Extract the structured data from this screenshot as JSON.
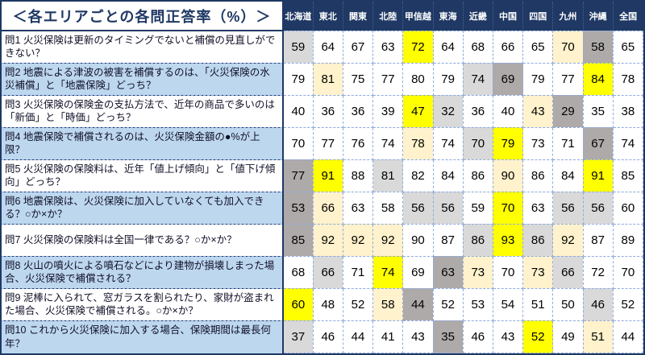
{
  "title": "＜各エリアごとの各問正答率（%）＞",
  "colors": {
    "navy": "#1F3864",
    "header_text": "#FFFFFF",
    "question_alt_bg": "#BDD7EE",
    "highlight_high": "#FFFF00",
    "highlight_high2": "#FFF2CC",
    "highlight_low": "#AEAAAA",
    "highlight_low2": "#D9D9D9"
  },
  "chart_data": {
    "type": "table",
    "title": "各エリアごとの各問正答率（%）",
    "columns": [
      "北海道",
      "東北",
      "関東",
      "北陸",
      "甲信越",
      "東海",
      "近畿",
      "中国",
      "四国",
      "九州",
      "沖縄",
      "全国"
    ],
    "highlight_colors": {
      "high": "#FFFF00",
      "high2": "#FFF2CC",
      "low": "#AEAAAA",
      "low2": "#D9D9D9"
    },
    "rows": [
      {
        "question": "問1 火災保険は更新のタイミングでないと補償の見直しができない？",
        "values": [
          59,
          64,
          67,
          63,
          72,
          64,
          68,
          66,
          65,
          70,
          58,
          65
        ],
        "highlights": [
          "low2",
          "",
          "",
          "",
          "high",
          "",
          "",
          "",
          "",
          "high2",
          "low",
          ""
        ]
      },
      {
        "question": "問2 地震による津波の被害を補償するのは、「火災保険の水災補償」と「地震保険」どっち？",
        "values": [
          79,
          81,
          75,
          77,
          80,
          79,
          74,
          69,
          79,
          77,
          84,
          78
        ],
        "highlights": [
          "",
          "high2",
          "",
          "",
          "",
          "",
          "low2",
          "low",
          "",
          "",
          "high",
          ""
        ]
      },
      {
        "question": "問3 火災保険の保険金の支払方法で、近年の商品で多いのは「新価」と「時価」どっち？",
        "values": [
          40,
          36,
          36,
          39,
          47,
          32,
          36,
          40,
          43,
          29,
          35,
          38
        ],
        "highlights": [
          "",
          "",
          "",
          "",
          "high",
          "low2",
          "",
          "",
          "high2",
          "low",
          "",
          ""
        ]
      },
      {
        "question": "問4 地震保険で補償されるのは、火災保険金額の●%が上限？",
        "values": [
          70,
          77,
          76,
          74,
          78,
          74,
          70,
          79,
          73,
          71,
          67,
          74
        ],
        "highlights": [
          "",
          "",
          "",
          "",
          "high2",
          "",
          "low2",
          "high",
          "",
          "",
          "low",
          ""
        ]
      },
      {
        "question": "問5 火災保険の保険料は、近年「値上げ傾向」と「値下げ傾向」どっち？",
        "values": [
          77,
          91,
          88,
          81,
          82,
          84,
          86,
          90,
          86,
          84,
          91,
          85
        ],
        "highlights": [
          "low",
          "high",
          "",
          "low2",
          "",
          "",
          "",
          "high2",
          "",
          "",
          "high",
          ""
        ]
      },
      {
        "question": "問6 地震保険は、火災保険に加入していなくても加入できる？○か×か？",
        "values": [
          53,
          66,
          63,
          58,
          56,
          56,
          59,
          70,
          63,
          56,
          56,
          60
        ],
        "highlights": [
          "low",
          "high2",
          "",
          "",
          "low2",
          "low2",
          "",
          "high",
          "",
          "low2",
          "low2",
          ""
        ]
      },
      {
        "question": "問7 火災保険の保険料は全国一律である？○か×か？",
        "values": [
          85,
          92,
          92,
          92,
          90,
          87,
          86,
          93,
          86,
          92,
          87,
          89
        ],
        "highlights": [
          "low",
          "high2",
          "high2",
          "high2",
          "",
          "",
          "low2",
          "high",
          "low2",
          "high2",
          "",
          ""
        ]
      },
      {
        "question": "問8 火山の噴火による噴石などにより建物が損壊しまった場合、火災保険で補償される？",
        "values": [
          68,
          66,
          71,
          74,
          69,
          63,
          73,
          70,
          73,
          66,
          72,
          70
        ],
        "highlights": [
          "",
          "low2",
          "",
          "high",
          "",
          "low",
          "high2",
          "",
          "high2",
          "low2",
          "",
          ""
        ]
      },
      {
        "question": "問9 泥棒に入られて、窓ガラスを割られたり、家財が盗まれた場合、火災保険で補償される。○か×か？",
        "values": [
          60,
          48,
          52,
          58,
          44,
          52,
          53,
          54,
          51,
          50,
          46,
          52
        ],
        "highlights": [
          "high",
          "",
          "",
          "high2",
          "low",
          "",
          "",
          "",
          "",
          "",
          "low2",
          ""
        ]
      },
      {
        "question": "問10 これから火災保険に加入する場合、保険期間は最長何年？",
        "values": [
          37,
          46,
          44,
          41,
          43,
          35,
          46,
          43,
          52,
          49,
          51,
          44
        ],
        "highlights": [
          "low2",
          "",
          "",
          "",
          "",
          "low",
          "",
          "",
          "high",
          "",
          "high2",
          ""
        ]
      }
    ]
  }
}
